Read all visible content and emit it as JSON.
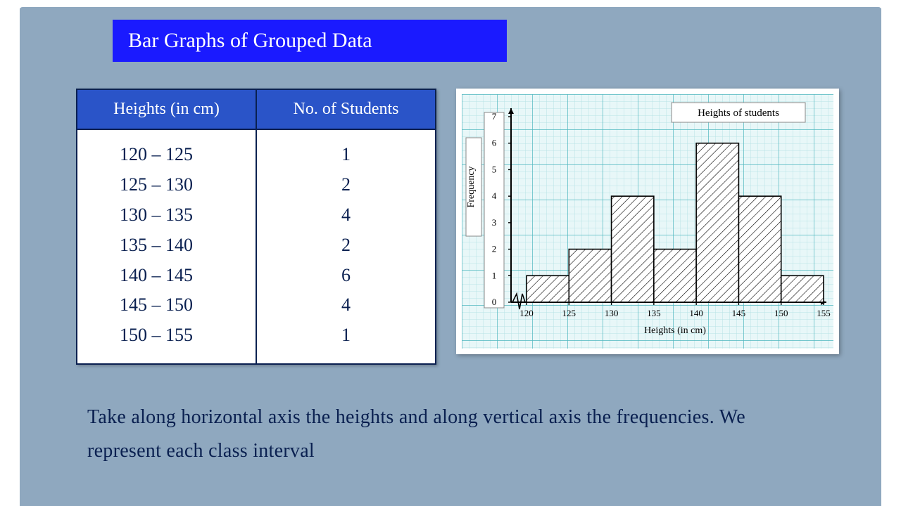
{
  "title": "Bar Graphs of Grouped Data",
  "table": {
    "columns": [
      "Heights (in cm)",
      "No. of Students"
    ],
    "rows": [
      [
        "120 – 125",
        "1"
      ],
      [
        "125 – 130",
        "2"
      ],
      [
        "130 – 135",
        "4"
      ],
      [
        "135 – 140",
        "2"
      ],
      [
        "140 – 145",
        "6"
      ],
      [
        "145 – 150",
        "4"
      ],
      [
        "150 – 155",
        "1"
      ]
    ],
    "header_bg": "#2a54c8",
    "header_fg": "#ffffff",
    "border_color": "#0a2050",
    "cell_text_color": "#0a2050",
    "header_fontsize": 24,
    "cell_fontsize": 26
  },
  "histogram": {
    "type": "histogram",
    "title": "Heights of students",
    "xlabel": "Heights (in cm)",
    "ylabel": "Frequency",
    "x_ticks": [
      120,
      125,
      130,
      135,
      140,
      145,
      150,
      155
    ],
    "y_ticks": [
      0,
      1,
      2,
      3,
      4,
      5,
      6,
      7
    ],
    "bins": [
      {
        "from": 120,
        "to": 125,
        "freq": 1
      },
      {
        "from": 125,
        "to": 130,
        "freq": 2
      },
      {
        "from": 130,
        "to": 135,
        "freq": 4
      },
      {
        "from": 135,
        "to": 140,
        "freq": 2
      },
      {
        "from": 140,
        "to": 145,
        "freq": 6
      },
      {
        "from": 145,
        "to": 150,
        "freq": 4
      },
      {
        "from": 150,
        "to": 155,
        "freq": 1
      }
    ],
    "xlim": [
      120,
      155
    ],
    "ylim": [
      0,
      7
    ],
    "bar_fill": "#ffffff",
    "bar_stroke": "#000000",
    "hatch": "diagonal",
    "hatch_color": "#000000",
    "axis_color": "#000000",
    "axis_width": 2,
    "grid_major_color": "#4fb7bf",
    "grid_minor_color": "#b7e3e6",
    "grid_minor_step": 5,
    "background_color": "#e8f7f8",
    "title_fontsize": 15,
    "label_fontsize": 14,
    "tick_fontsize": 13,
    "axis_break_zigzag": true
  },
  "caption": "Take along horizontal axis the heights and along vertical axis the frequencies. We represent each class interval",
  "colors": {
    "slide_bg": "#8fa8bf",
    "title_bar_bg": "#1a1aff",
    "title_bar_fg": "#ffffff",
    "text": "#0a2050"
  }
}
